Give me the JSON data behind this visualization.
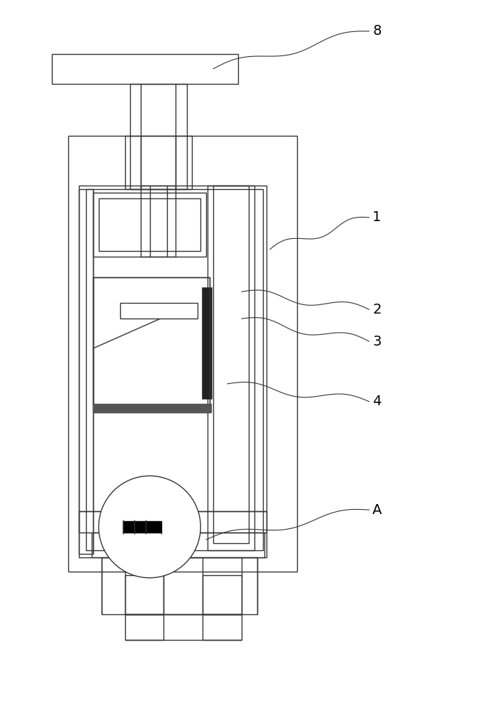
{
  "bg_color": "#ffffff",
  "line_color": "#333333",
  "lw": 1.0,
  "lw_thick": 1.8,
  "label_fontsize": 14,
  "figsize": [
    6.81,
    10.0
  ],
  "dpi": 100
}
